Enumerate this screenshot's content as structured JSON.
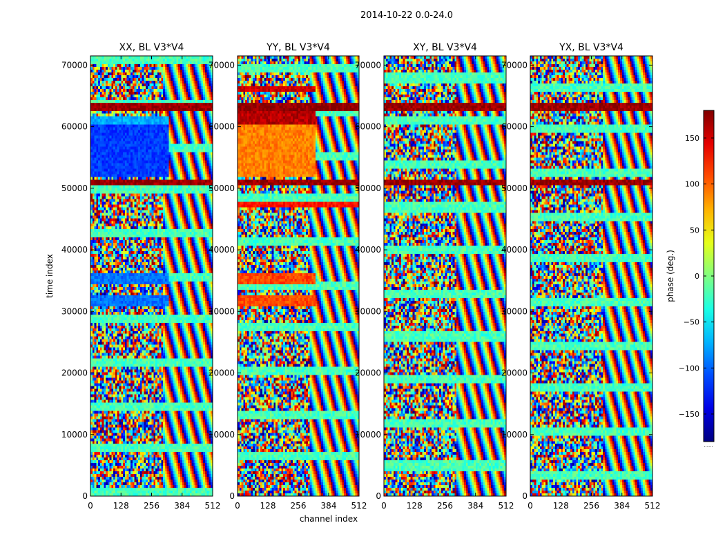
{
  "figure": {
    "suptitle": "2014-10-22 0.0-24.0",
    "xlabel": "channel index",
    "ylabel": "time index",
    "colorbar_label": "phase (deg.)",
    "colorbar_footer": "......"
  },
  "chart_data": [
    {
      "type": "heatmap",
      "title": "XX, BL V3*V4",
      "xlabel": "channel index",
      "ylabel": "time index",
      "xlim": [
        0,
        512
      ],
      "ylim": [
        0,
        71500
      ],
      "xticks": [
        0,
        128,
        256,
        384,
        512
      ],
      "yticks": [
        0,
        10000,
        20000,
        30000,
        40000,
        50000,
        60000,
        70000
      ],
      "value_range": [
        -180,
        180
      ],
      "coherent_bands": [
        {
          "t": [
            30900,
            32400
          ],
          "ch": [
            0,
            326
          ],
          "phase": -95
        },
        {
          "t": [
            34400,
            36100
          ],
          "ch": [
            0,
            326
          ],
          "phase": -95
        },
        {
          "t": [
            50700,
            51300
          ],
          "ch": [
            0,
            512
          ],
          "phase": 170
        },
        {
          "t": [
            52000,
            60500
          ],
          "ch": [
            0,
            326
          ],
          "phase": -115
        },
        {
          "t": [
            60500,
            61800
          ],
          "ch": [
            0,
            326
          ],
          "phase": -75
        },
        {
          "t": [
            62500,
            64000
          ],
          "ch": [
            0,
            512
          ],
          "phase": 170
        }
      ]
    },
    {
      "type": "heatmap",
      "title": "YY, BL V3*V4",
      "xlabel": "channel index",
      "ylabel": "time index",
      "xlim": [
        0,
        512
      ],
      "ylim": [
        0,
        71500
      ],
      "xticks": [
        0,
        128,
        256,
        384,
        512
      ],
      "yticks": [
        0,
        10000,
        20000,
        30000,
        40000,
        50000,
        60000,
        70000
      ],
      "value_range": [
        -180,
        180
      ],
      "coherent_bands": [
        {
          "t": [
            30900,
            32400
          ],
          "ch": [
            0,
            326
          ],
          "phase": 110
        },
        {
          "t": [
            34400,
            36100
          ],
          "ch": [
            0,
            326
          ],
          "phase": 110
        },
        {
          "t": [
            47000,
            47600
          ],
          "ch": [
            0,
            512
          ],
          "phase": 130
        },
        {
          "t": [
            50700,
            51300
          ],
          "ch": [
            0,
            512
          ],
          "phase": 170
        },
        {
          "t": [
            52000,
            60500
          ],
          "ch": [
            0,
            326
          ],
          "phase": 90
        },
        {
          "t": [
            60500,
            62500
          ],
          "ch": [
            0,
            326
          ],
          "phase": 160
        },
        {
          "t": [
            62500,
            64000
          ],
          "ch": [
            0,
            512
          ],
          "phase": 175
        },
        {
          "t": [
            65500,
            66500
          ],
          "ch": [
            0,
            326
          ],
          "phase": 150
        }
      ]
    },
    {
      "type": "heatmap",
      "title": "XY, BL V3*V4",
      "xlabel": "channel index",
      "ylabel": "time index",
      "xlim": [
        0,
        512
      ],
      "ylim": [
        0,
        71500
      ],
      "xticks": [
        0,
        128,
        256,
        384,
        512
      ],
      "yticks": [
        0,
        10000,
        20000,
        30000,
        40000,
        50000,
        60000,
        70000
      ],
      "value_range": [
        -180,
        180
      ],
      "coherent_bands": [
        {
          "t": [
            50700,
            51300
          ],
          "ch": [
            0,
            512
          ],
          "phase": 170
        },
        {
          "t": [
            62500,
            64000
          ],
          "ch": [
            0,
            512
          ],
          "phase": 170
        }
      ]
    },
    {
      "type": "heatmap",
      "title": "YX, BL V3*V4",
      "xlabel": "channel index",
      "ylabel": "time index",
      "xlim": [
        0,
        512
      ],
      "ylim": [
        0,
        71500
      ],
      "xticks": [
        0,
        128,
        256,
        384,
        512
      ],
      "yticks": [
        0,
        10000,
        20000,
        30000,
        40000,
        50000,
        60000,
        70000
      ],
      "value_range": [
        -180,
        180
      ],
      "coherent_bands": [
        {
          "t": [
            50700,
            51300
          ],
          "ch": [
            0,
            512
          ],
          "phase": 170
        },
        {
          "t": [
            62500,
            64000
          ],
          "ch": [
            0,
            512
          ],
          "phase": 170
        }
      ]
    }
  ],
  "colorbar": {
    "min": -180,
    "max": 180,
    "ticks": [
      -150,
      -100,
      -50,
      0,
      50,
      100,
      150
    ]
  }
}
